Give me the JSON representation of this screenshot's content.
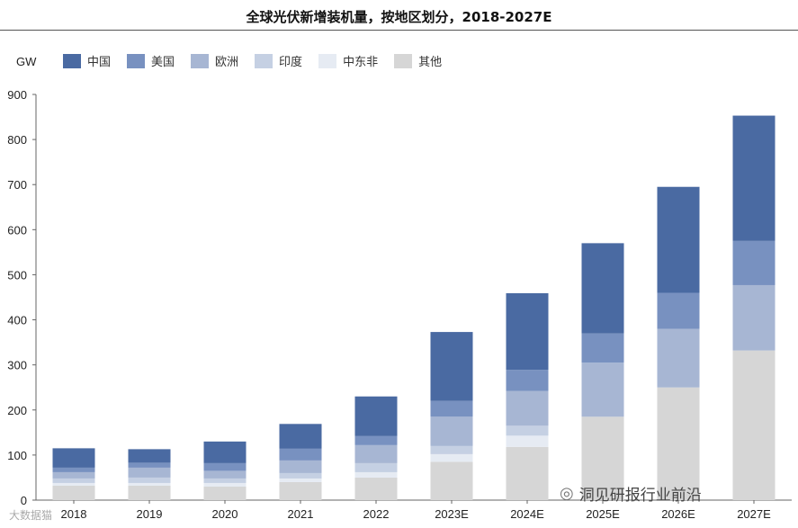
{
  "chart_data": {
    "type": "bar",
    "stacked": true,
    "title": "全球光伏新增装机量，按地区划分，2018-2027E",
    "ylabel": "GW",
    "ylim": [
      0,
      900
    ],
    "yticks": [
      0,
      100,
      200,
      300,
      400,
      500,
      600,
      700,
      800,
      900
    ],
    "grid": false,
    "legend_position": "top",
    "categories": [
      "2018",
      "2019",
      "2020",
      "2021",
      "2022",
      "2023E",
      "2024E",
      "2025E",
      "2026E",
      "2027E"
    ],
    "series": [
      {
        "name": "其他",
        "color": "#d6d6d6",
        "values": [
          32,
          32,
          30,
          40,
          50,
          85,
          118,
          185,
          250,
          332
        ]
      },
      {
        "name": "中东非",
        "color": "#e6ebf3",
        "values": [
          6,
          6,
          8,
          8,
          12,
          17,
          25,
          0,
          0,
          0
        ]
      },
      {
        "name": "印度",
        "color": "#c5d0e3",
        "values": [
          10,
          12,
          10,
          12,
          20,
          18,
          22,
          0,
          0,
          0
        ]
      },
      {
        "name": "欧洲",
        "color": "#a7b6d3",
        "values": [
          14,
          22,
          17,
          28,
          40,
          65,
          77,
          120,
          130,
          145
        ]
      },
      {
        "name": "美国",
        "color": "#7891c0",
        "values": [
          10,
          11,
          17,
          26,
          20,
          35,
          47,
          65,
          80,
          98
        ]
      },
      {
        "name": "中国",
        "color": "#4a6aa2",
        "values": [
          43,
          30,
          48,
          55,
          88,
          153,
          170,
          200,
          235,
          278
        ]
      }
    ],
    "legend_order": [
      "中国",
      "美国",
      "欧洲",
      "印度",
      "中东非",
      "其他"
    ]
  },
  "footer_tag": "洞见研报行业前沿",
  "footer_left": "大数据猫"
}
